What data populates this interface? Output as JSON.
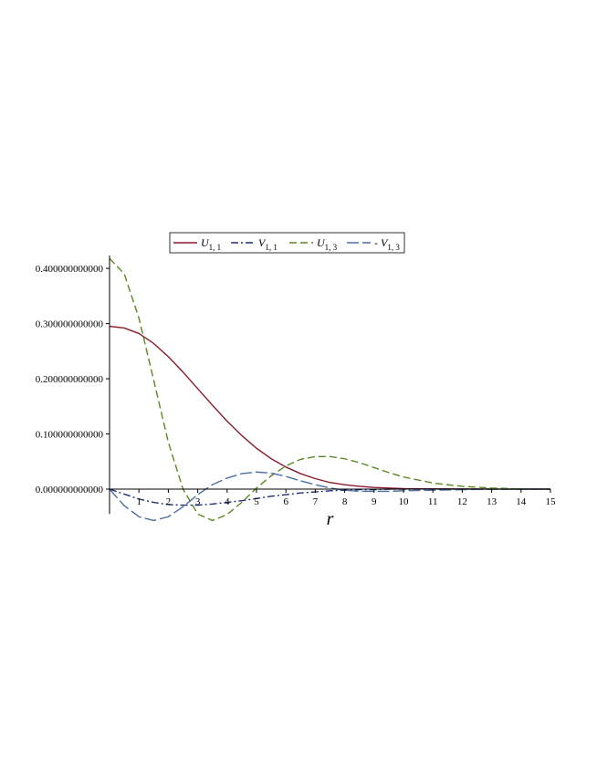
{
  "chart_data": {
    "type": "line",
    "xlabel": "r",
    "ylabel": "",
    "title": "",
    "xlim": [
      0,
      15
    ],
    "ylim": [
      -0.045,
      0.42
    ],
    "x_ticks": [
      1,
      2,
      3,
      4,
      5,
      6,
      7,
      8,
      9,
      10,
      11,
      12,
      13,
      14,
      15
    ],
    "x_tick_labels": [
      "1",
      "2",
      "3",
      "4",
      "5",
      "6",
      "7",
      "8",
      "9",
      "10",
      "11",
      "12",
      "13",
      "14",
      "15"
    ],
    "y_ticks": [
      0.0,
      0.1,
      0.2,
      0.3,
      0.4
    ],
    "y_tick_labels": [
      "0.000000000000",
      "0.100000000000",
      "0.200000000000",
      "0.300000000000",
      "0.400000000000"
    ],
    "grid": false,
    "legend_position": "top",
    "series": [
      {
        "name": "U1,1",
        "label_main": "U",
        "label_sub": "1, 1",
        "label_prefix": "",
        "color": "#8b1a2b",
        "dash": "solid",
        "x": [
          0,
          0.5,
          1,
          1.5,
          2,
          2.5,
          3,
          3.5,
          4,
          4.5,
          5,
          5.5,
          6,
          6.5,
          7,
          7.5,
          8,
          8.5,
          9,
          9.5,
          10,
          11,
          12,
          13,
          14,
          15
        ],
        "y": [
          0.295,
          0.292,
          0.282,
          0.264,
          0.24,
          0.212,
          0.182,
          0.152,
          0.123,
          0.097,
          0.074,
          0.055,
          0.04,
          0.028,
          0.019,
          0.012,
          0.008,
          0.005,
          0.003,
          0.002,
          0.001,
          0.0005,
          0.0002,
          0.0001,
          0.0,
          0.0
        ]
      },
      {
        "name": "V1,1",
        "label_main": "V",
        "label_sub": "1, 1",
        "label_prefix": "",
        "color": "#1f2f7a",
        "dash": "dashdot",
        "x": [
          0,
          0.5,
          1,
          1.5,
          2,
          2.5,
          3,
          3.5,
          4,
          4.5,
          5,
          5.5,
          6,
          6.5,
          7,
          7.5,
          8,
          8.5,
          9,
          9.5,
          10,
          11,
          12,
          13,
          14,
          15
        ],
        "y": [
          0.0,
          -0.009,
          -0.018,
          -0.024,
          -0.028,
          -0.029,
          -0.029,
          -0.027,
          -0.024,
          -0.021,
          -0.017,
          -0.013,
          -0.01,
          -0.007,
          -0.005,
          -0.003,
          -0.002,
          -0.001,
          -0.001,
          0.0,
          0.0,
          0.0,
          0.0,
          0.0,
          0.0,
          0.0
        ]
      },
      {
        "name": "U1,3",
        "label_main": "U",
        "label_sub": "1, 3",
        "label_prefix": "",
        "color": "#5a8a1e",
        "dash": "dash",
        "x": [
          0,
          0.5,
          1,
          1.5,
          2,
          2.5,
          3,
          3.5,
          4,
          4.5,
          5,
          5.5,
          6,
          6.5,
          7,
          7.5,
          8,
          8.5,
          9,
          9.5,
          10,
          11,
          12,
          13,
          14,
          15
        ],
        "y": [
          0.418,
          0.39,
          0.31,
          0.198,
          0.085,
          0.0,
          -0.045,
          -0.057,
          -0.046,
          -0.024,
          0.002,
          0.024,
          0.042,
          0.054,
          0.059,
          0.059,
          0.055,
          0.048,
          0.039,
          0.03,
          0.022,
          0.011,
          0.005,
          0.002,
          0.0005,
          0.0
        ]
      },
      {
        "name": "-V1,3",
        "label_main": "V",
        "label_sub": "1, 3",
        "label_prefix": "- ",
        "color": "#4a6fa5",
        "dash": "longdash",
        "x": [
          0,
          0.5,
          1,
          1.5,
          2,
          2.5,
          3,
          3.5,
          4,
          4.5,
          5,
          5.5,
          6,
          6.5,
          7,
          7.5,
          8,
          8.5,
          9,
          9.5,
          10,
          11,
          12,
          13,
          14,
          15
        ],
        "y": [
          0.0,
          -0.03,
          -0.05,
          -0.057,
          -0.05,
          -0.032,
          -0.01,
          0.008,
          0.02,
          0.028,
          0.031,
          0.029,
          0.023,
          0.015,
          0.008,
          0.002,
          -0.002,
          -0.004,
          -0.004,
          -0.004,
          -0.003,
          -0.002,
          -0.001,
          -0.0003,
          0.0,
          0.0
        ]
      }
    ]
  }
}
